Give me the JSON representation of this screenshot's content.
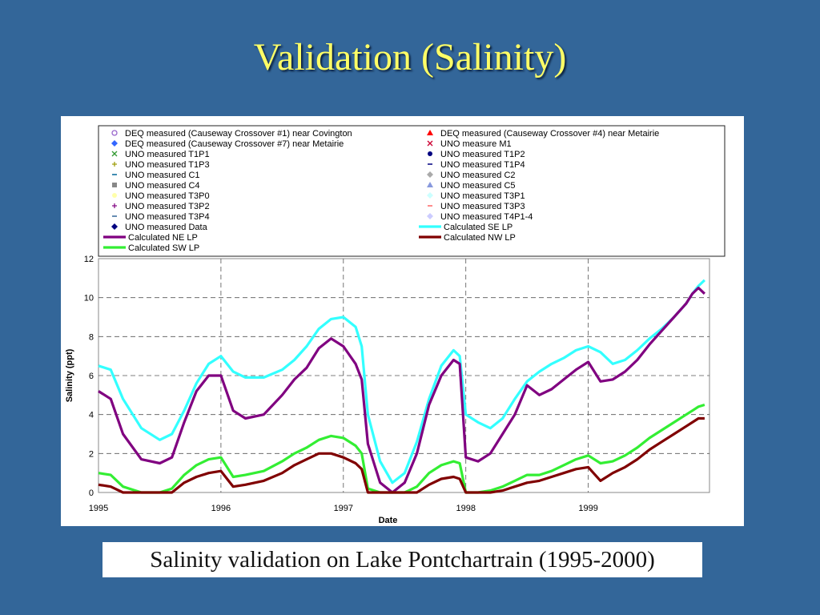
{
  "slide": {
    "title": "Validation (Salinity)",
    "caption": "Salinity validation on Lake Pontchartrain (1995-2000)"
  },
  "colors": {
    "background": "#336699",
    "title": "#ffff66"
  },
  "chart_data": {
    "type": "line",
    "xlabel": "Date",
    "ylabel": "Salinity (ppt)",
    "xlim": [
      1995,
      1999.99
    ],
    "ylim": [
      0,
      12
    ],
    "x_ticks": [
      "1995",
      "1996",
      "1997",
      "1998",
      "1999"
    ],
    "y_ticks": [
      0,
      2,
      4,
      6,
      8,
      10,
      12
    ],
    "grid": "dashed",
    "legend_position": "top",
    "legend": [
      {
        "label": "DEQ measured (Causeway Crossover #1) near Covington",
        "marker": "circle",
        "color": "#9966cc"
      },
      {
        "label": "DEQ measured (Causeway Crossover #4) near Metairie",
        "marker": "triangle",
        "color": "#ff0000"
      },
      {
        "label": "DEQ measured (Causeway Crossover #7) near Metairie",
        "marker": "diamond",
        "color": "#3366ff"
      },
      {
        "label": "UNO measure M1",
        "marker": "x",
        "color": "#cc0033"
      },
      {
        "label": "UNO measured T1P1",
        "marker": "x",
        "color": "#339933"
      },
      {
        "label": "UNO measured T1P2",
        "marker": "dot",
        "color": "#000080"
      },
      {
        "label": "UNO measured T1P3",
        "marker": "plus",
        "color": "#999900"
      },
      {
        "label": "UNO measured T1P4",
        "marker": "dash",
        "color": "#000080"
      },
      {
        "label": "UNO measured C1",
        "marker": "dash",
        "color": "#006699"
      },
      {
        "label": "UNO measured C2",
        "marker": "diamond",
        "color": "#aaaaaa"
      },
      {
        "label": "UNO measured C4",
        "marker": "square",
        "color": "#888888"
      },
      {
        "label": "UNO measured C5",
        "marker": "triangle",
        "color": "#8899dd"
      },
      {
        "label": "UNO measured T3P0",
        "marker": "dot",
        "color": "#ffffaa"
      },
      {
        "label": "UNO measured T3P1",
        "marker": "diamond",
        "color": "#ccffff"
      },
      {
        "label": "UNO measured T3P2",
        "marker": "plus",
        "color": "#800080"
      },
      {
        "label": "UNO measured T3P3",
        "marker": "dash",
        "color": "#ff6666"
      },
      {
        "label": "UNO measured T3P4",
        "marker": "dash",
        "color": "#336699"
      },
      {
        "label": "UNO measured T4P1-4",
        "marker": "diamond",
        "color": "#ccccff"
      },
      {
        "label": "UNO measured Data",
        "marker": "diamond",
        "color": "#000080"
      },
      {
        "label": "Calculated SE LP",
        "marker": "line",
        "color": "#33ffff"
      },
      {
        "label": "Calculated NE LP",
        "marker": "line",
        "color": "#800080"
      },
      {
        "label": "Calculated NW LP",
        "marker": "line",
        "color": "#800000"
      },
      {
        "label": "Calculated  SW LP",
        "marker": "line",
        "color": "#33ee33"
      }
    ],
    "series": [
      {
        "name": "Calculated SE LP",
        "color": "#33ffff",
        "x": [
          1995.0,
          1995.1,
          1995.2,
          1995.35,
          1995.5,
          1995.6,
          1995.7,
          1995.8,
          1995.9,
          1996.0,
          1996.1,
          1996.2,
          1996.35,
          1996.5,
          1996.6,
          1996.7,
          1996.8,
          1996.9,
          1997.0,
          1997.1,
          1997.15,
          1997.2,
          1997.3,
          1997.4,
          1997.5,
          1997.6,
          1997.7,
          1997.8,
          1997.9,
          1997.95,
          1998.0,
          1998.1,
          1998.2,
          1998.3,
          1998.4,
          1998.5,
          1998.6,
          1998.7,
          1998.8,
          1998.9,
          1999.0,
          1999.1,
          1999.2,
          1999.3,
          1999.4,
          1999.5,
          1999.6,
          1999.7,
          1999.8,
          1999.85,
          1999.9,
          1999.95
        ],
        "y": [
          6.5,
          6.3,
          4.8,
          3.3,
          2.7,
          3.0,
          4.2,
          5.6,
          6.6,
          7.0,
          6.2,
          5.9,
          5.9,
          6.3,
          6.8,
          7.5,
          8.4,
          8.9,
          9.0,
          8.5,
          7.5,
          4.0,
          1.6,
          0.5,
          1.0,
          2.6,
          4.8,
          6.5,
          7.3,
          7.0,
          4.0,
          3.6,
          3.3,
          3.8,
          4.8,
          5.7,
          6.2,
          6.6,
          6.9,
          7.3,
          7.5,
          7.2,
          6.6,
          6.8,
          7.3,
          7.9,
          8.4,
          9.0,
          9.7,
          10.2,
          10.6,
          10.9
        ]
      },
      {
        "name": "Calculated NE LP",
        "color": "#800080",
        "x": [
          1995.0,
          1995.1,
          1995.2,
          1995.35,
          1995.5,
          1995.6,
          1995.7,
          1995.8,
          1995.9,
          1996.0,
          1996.1,
          1996.2,
          1996.35,
          1996.5,
          1996.6,
          1996.7,
          1996.8,
          1996.9,
          1997.0,
          1997.1,
          1997.15,
          1997.2,
          1997.3,
          1997.4,
          1997.5,
          1997.6,
          1997.7,
          1997.8,
          1997.9,
          1997.95,
          1998.0,
          1998.1,
          1998.2,
          1998.3,
          1998.4,
          1998.5,
          1998.6,
          1998.7,
          1998.8,
          1998.9,
          1999.0,
          1999.1,
          1999.2,
          1999.3,
          1999.4,
          1999.5,
          1999.6,
          1999.7,
          1999.8,
          1999.85,
          1999.9,
          1999.95
        ],
        "y": [
          5.2,
          4.8,
          3.0,
          1.7,
          1.5,
          1.8,
          3.6,
          5.2,
          6.0,
          6.0,
          4.2,
          3.8,
          4.0,
          5.0,
          5.8,
          6.4,
          7.4,
          7.9,
          7.5,
          6.6,
          5.8,
          2.5,
          0.5,
          0.0,
          0.5,
          2.0,
          4.5,
          6.0,
          6.8,
          6.6,
          1.8,
          1.6,
          2.0,
          3.0,
          4.0,
          5.5,
          5.0,
          5.3,
          5.8,
          6.3,
          6.7,
          5.7,
          5.8,
          6.2,
          6.8,
          7.6,
          8.3,
          9.0,
          9.7,
          10.2,
          10.5,
          10.2
        ]
      },
      {
        "name": "Calculated  SW LP",
        "color": "#33ee33",
        "x": [
          1995.0,
          1995.1,
          1995.2,
          1995.35,
          1995.5,
          1995.6,
          1995.7,
          1995.8,
          1995.9,
          1996.0,
          1996.1,
          1996.2,
          1996.35,
          1996.5,
          1996.6,
          1996.7,
          1996.8,
          1996.9,
          1997.0,
          1997.1,
          1997.15,
          1997.2,
          1997.3,
          1997.4,
          1997.5,
          1997.6,
          1997.7,
          1997.8,
          1997.9,
          1997.95,
          1998.0,
          1998.1,
          1998.2,
          1998.3,
          1998.4,
          1998.5,
          1998.6,
          1998.7,
          1998.8,
          1998.9,
          1999.0,
          1999.1,
          1999.2,
          1999.3,
          1999.4,
          1999.5,
          1999.6,
          1999.7,
          1999.8,
          1999.85,
          1999.9,
          1999.95
        ],
        "y": [
          1.0,
          0.9,
          0.3,
          0.0,
          0.0,
          0.2,
          0.9,
          1.4,
          1.7,
          1.8,
          0.8,
          0.9,
          1.1,
          1.6,
          2.0,
          2.3,
          2.7,
          2.9,
          2.8,
          2.4,
          2.0,
          0.2,
          0.0,
          0.0,
          0.0,
          0.3,
          1.0,
          1.4,
          1.6,
          1.5,
          0.0,
          0.0,
          0.1,
          0.3,
          0.6,
          0.9,
          0.9,
          1.1,
          1.4,
          1.7,
          1.9,
          1.5,
          1.6,
          1.9,
          2.3,
          2.8,
          3.2,
          3.6,
          4.0,
          4.2,
          4.4,
          4.5
        ]
      },
      {
        "name": "Calculated NW LP",
        "color": "#800000",
        "x": [
          1995.0,
          1995.1,
          1995.2,
          1995.35,
          1995.5,
          1995.6,
          1995.7,
          1995.8,
          1995.9,
          1996.0,
          1996.1,
          1996.2,
          1996.35,
          1996.5,
          1996.6,
          1996.7,
          1996.8,
          1996.9,
          1997.0,
          1997.1,
          1997.15,
          1997.2,
          1997.3,
          1997.4,
          1997.5,
          1997.6,
          1997.7,
          1997.8,
          1997.9,
          1997.95,
          1998.0,
          1998.1,
          1998.2,
          1998.3,
          1998.4,
          1998.5,
          1998.6,
          1998.7,
          1998.8,
          1998.9,
          1999.0,
          1999.1,
          1999.2,
          1999.3,
          1999.4,
          1999.5,
          1999.6,
          1999.7,
          1999.8,
          1999.85,
          1999.9,
          1999.95
        ],
        "y": [
          0.4,
          0.3,
          0.0,
          0.0,
          0.0,
          0.0,
          0.5,
          0.8,
          1.0,
          1.1,
          0.3,
          0.4,
          0.6,
          1.0,
          1.4,
          1.7,
          2.0,
          2.0,
          1.8,
          1.5,
          1.2,
          0.0,
          0.0,
          0.0,
          0.0,
          0.0,
          0.4,
          0.7,
          0.8,
          0.7,
          0.0,
          0.0,
          0.0,
          0.1,
          0.3,
          0.5,
          0.6,
          0.8,
          1.0,
          1.2,
          1.3,
          0.6,
          1.0,
          1.3,
          1.7,
          2.2,
          2.6,
          3.0,
          3.4,
          3.6,
          3.8,
          3.8
        ]
      }
    ]
  }
}
